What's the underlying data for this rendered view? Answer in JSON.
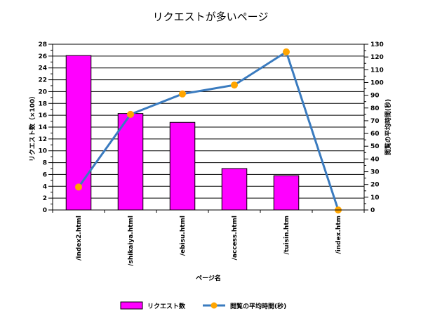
{
  "chart_data": {
    "type": "bar",
    "title": "リクエストが多いページ",
    "xlabel": "ページ名",
    "ylabel": "リクエスト数（×100）",
    "y2label": "閲覧の平均時間(秒)",
    "categories": [
      "/index2.html",
      "/shikaiya.html",
      "/ebisu.html",
      "/access.html",
      "/tuisin.htm",
      "/index.htm"
    ],
    "series": [
      {
        "name": "リクエスト数",
        "type": "bar",
        "axis": "left",
        "values": [
          26.1,
          16.3,
          14.8,
          7.0,
          5.8,
          0
        ]
      },
      {
        "name": "閲覧の平均時間(秒)",
        "type": "line",
        "axis": "right",
        "values": [
          18,
          75,
          91,
          98,
          124,
          0
        ]
      }
    ],
    "ylim": [
      0,
      28
    ],
    "y_major_step": 2,
    "y2lim": [
      0,
      130
    ],
    "y2_major_step": 10,
    "grid": true,
    "legend_position": "bottom",
    "colors": {
      "bar_fill": "#ff00ff",
      "bar_stroke": "#000000",
      "line": "#3a7bbf",
      "marker": "#ffa500",
      "grid": "#000000"
    }
  }
}
